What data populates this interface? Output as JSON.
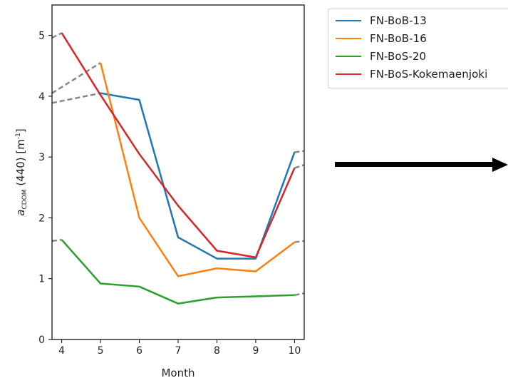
{
  "chart_data": {
    "type": "line",
    "xlabel": "Month",
    "ylabel": "a",
    "ylabel_sub": "CDOM",
    "ylabel_rest": " (440) [m",
    "ylabel_sup": "-1",
    "ylabel_end": "]",
    "xlim": [
      3.75,
      10.25
    ],
    "ylim": [
      0,
      5.5
    ],
    "xticks": [
      "4",
      "5",
      "6",
      "7",
      "8",
      "9",
      "10"
    ],
    "yticks": [
      "0",
      "1",
      "2",
      "3",
      "4",
      "5"
    ],
    "x": [
      4,
      5,
      6,
      7,
      8,
      9,
      10
    ],
    "series": [
      {
        "name": "FN-BoB-13",
        "color": "#1f77b4",
        "x": [
          5,
          6,
          7,
          8,
          9,
          10
        ],
        "values": [
          4.05,
          3.94,
          1.68,
          1.33,
          1.33,
          3.08
        ]
      },
      {
        "name": "FN-BoB-16",
        "color": "#ff7f0e",
        "x": [
          5,
          6,
          7,
          8,
          9,
          10
        ],
        "values": [
          4.55,
          2.0,
          1.04,
          1.17,
          1.12,
          1.6
        ]
      },
      {
        "name": "FN-BoS-20",
        "color": "#2ca02c",
        "x": [
          4,
          5,
          6,
          7,
          8,
          9,
          10
        ],
        "values": [
          1.64,
          0.92,
          0.87,
          0.59,
          0.69,
          0.71,
          0.73
        ]
      },
      {
        "name": "FN-BoS-Kokemaenjoki",
        "color": "#d62728",
        "x": [
          4,
          5,
          6,
          7,
          8,
          9,
          10
        ],
        "values": [
          5.04,
          4.02,
          3.05,
          2.2,
          1.46,
          1.35,
          2.82
        ]
      }
    ],
    "extrapolation": {
      "color": "#888888",
      "style": "dashed",
      "segments": [
        {
          "x": [
            3.75,
            5
          ],
          "values": [
            3.89,
            4.05
          ]
        },
        {
          "x": [
            3.75,
            5
          ],
          "values": [
            4.05,
            4.55
          ]
        },
        {
          "x": [
            3.75,
            4
          ],
          "values": [
            4.96,
            5.04
          ]
        },
        {
          "x": [
            3.75,
            4
          ],
          "values": [
            1.62,
            1.64
          ]
        },
        {
          "x": [
            10,
            10.25
          ],
          "values": [
            3.08,
            3.1
          ]
        },
        {
          "x": [
            10,
            10.25
          ],
          "values": [
            2.82,
            2.87
          ]
        },
        {
          "x": [
            10,
            10.25
          ],
          "values": [
            1.6,
            1.62
          ]
        },
        {
          "x": [
            10,
            10.25
          ],
          "values": [
            0.73,
            0.76
          ]
        }
      ]
    },
    "legend_position": "outside-right",
    "grid": false
  },
  "arrow": {
    "direction": "right",
    "color": "#000000"
  }
}
